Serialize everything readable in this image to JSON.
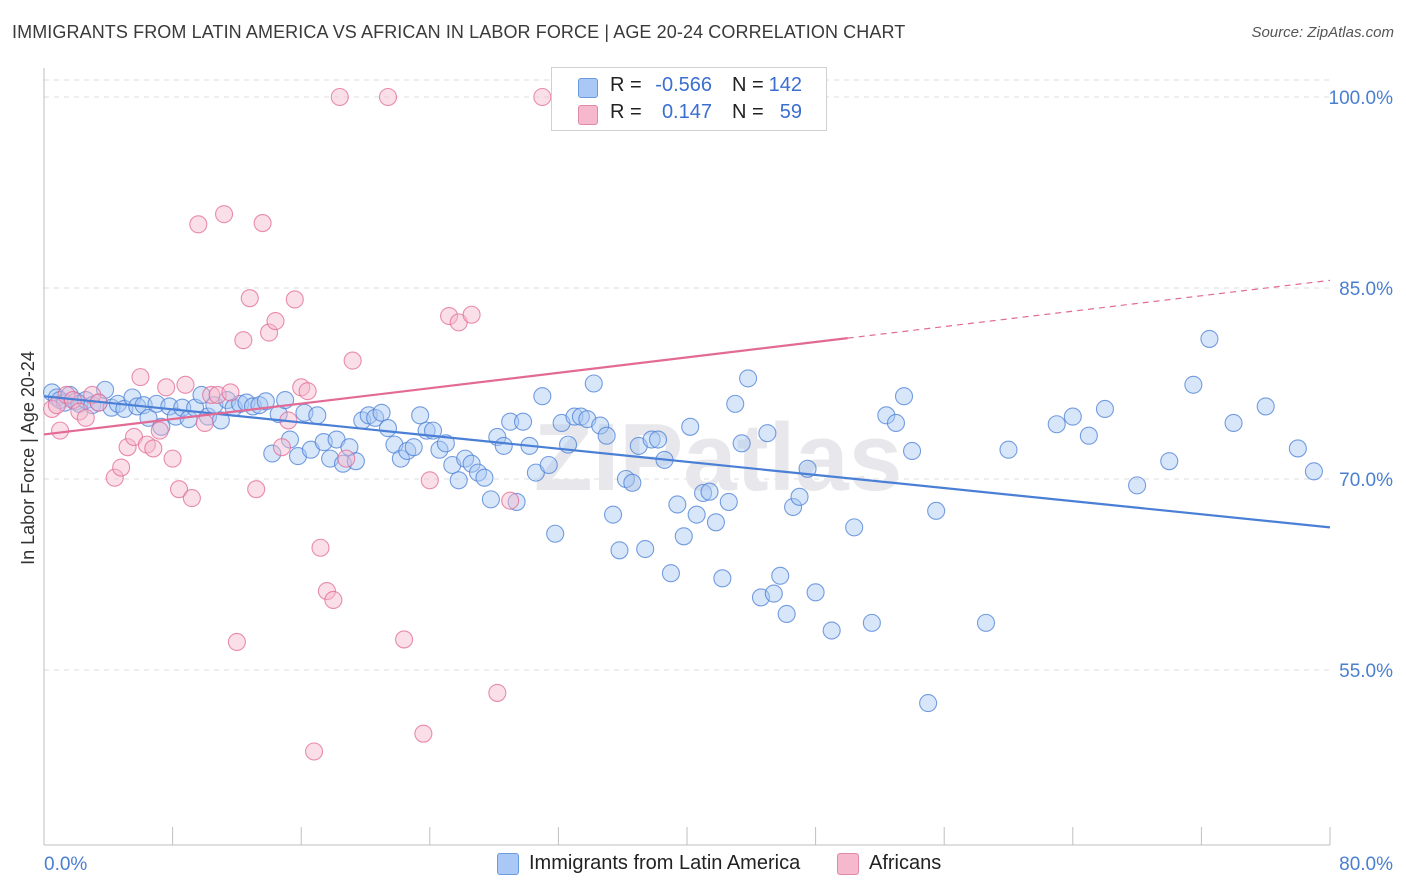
{
  "title": "IMMIGRANTS FROM LATIN AMERICA VS AFRICAN IN LABOR FORCE | AGE 20-24 CORRELATION CHART",
  "source": "Source: ZipAtlas.com",
  "watermark": "ZIPatlas",
  "legend": {
    "rows": [
      {
        "r_label": "R =",
        "r_value": "-0.566",
        "n_label": "N =",
        "n_value": "142",
        "color": "#a9c8f5"
      },
      {
        "r_label": "R =",
        "r_value": "0.147",
        "n_label": "N =",
        "n_value": "59",
        "color": "#f5b8cc"
      }
    ]
  },
  "bottom_legend": [
    {
      "label": "Immigrants from Latin America",
      "color": "#a9c8f5"
    },
    {
      "label": "Africans",
      "color": "#f5b8cc"
    }
  ],
  "chart_data": {
    "type": "scatter",
    "title": "IMMIGRANTS FROM LATIN AMERICA VS AFRICAN IN LABOR FORCE | AGE 20-24 CORRELATION CHART",
    "xlabel": "",
    "ylabel": "In Labor Force | Age 20-24",
    "xlim": [
      0,
      80
    ],
    "ylim": [
      40,
      102
    ],
    "x_tick_labels": [
      "0.0%",
      "80.0%"
    ],
    "y_ticks": [
      55,
      70,
      85,
      100
    ],
    "y_tick_labels": [
      "55.0%",
      "70.0%",
      "85.0%",
      "100.0%"
    ],
    "grid": true,
    "series": [
      {
        "name": "Immigrants from Latin America",
        "color": "#4a7fd6",
        "fill": "#a9c8f5",
        "trend": {
          "x": [
            0,
            80
          ],
          "y": [
            76.5,
            66.2
          ],
          "dashed_from": null
        },
        "points": [
          [
            0.5,
            76.8
          ],
          [
            0.8,
            76.4
          ],
          [
            1.0,
            76.2
          ],
          [
            1.3,
            76.0
          ],
          [
            1.6,
            76.6
          ],
          [
            2.0,
            76.1
          ],
          [
            2.2,
            75.9
          ],
          [
            2.6,
            76.2
          ],
          [
            3.0,
            75.8
          ],
          [
            3.4,
            76.0
          ],
          [
            3.8,
            77.0
          ],
          [
            4.2,
            75.6
          ],
          [
            4.6,
            75.9
          ],
          [
            5.0,
            75.5
          ],
          [
            5.5,
            76.4
          ],
          [
            5.8,
            75.7
          ],
          [
            6.2,
            75.8
          ],
          [
            6.5,
            74.8
          ],
          [
            7.0,
            75.9
          ],
          [
            7.3,
            74.1
          ],
          [
            7.8,
            75.7
          ],
          [
            8.2,
            74.9
          ],
          [
            8.6,
            75.6
          ],
          [
            9.0,
            74.7
          ],
          [
            9.4,
            75.6
          ],
          [
            9.8,
            76.6
          ],
          [
            10.2,
            74.9
          ],
          [
            10.6,
            75.8
          ],
          [
            11.0,
            74.6
          ],
          [
            11.4,
            76.2
          ],
          [
            11.8,
            75.6
          ],
          [
            12.2,
            75.9
          ],
          [
            12.6,
            76.0
          ],
          [
            13.0,
            75.7
          ],
          [
            13.4,
            75.8
          ],
          [
            13.8,
            76.1
          ],
          [
            14.2,
            72.0
          ],
          [
            14.6,
            75.1
          ],
          [
            15.0,
            76.2
          ],
          [
            15.3,
            73.1
          ],
          [
            15.8,
            71.8
          ],
          [
            16.2,
            75.2
          ],
          [
            16.6,
            72.3
          ],
          [
            17.0,
            75.0
          ],
          [
            17.4,
            72.9
          ],
          [
            17.8,
            71.6
          ],
          [
            18.2,
            73.1
          ],
          [
            18.6,
            71.2
          ],
          [
            19.0,
            72.5
          ],
          [
            19.4,
            71.4
          ],
          [
            19.8,
            74.6
          ],
          [
            20.2,
            75.0
          ],
          [
            20.6,
            74.8
          ],
          [
            21.0,
            75.2
          ],
          [
            21.4,
            74.0
          ],
          [
            21.8,
            72.7
          ],
          [
            22.2,
            71.6
          ],
          [
            22.6,
            72.2
          ],
          [
            23.0,
            72.5
          ],
          [
            23.4,
            75.0
          ],
          [
            23.8,
            73.8
          ],
          [
            24.2,
            73.8
          ],
          [
            24.6,
            72.3
          ],
          [
            25.0,
            72.8
          ],
          [
            25.4,
            71.1
          ],
          [
            25.8,
            69.9
          ],
          [
            26.2,
            71.6
          ],
          [
            26.6,
            71.2
          ],
          [
            27.0,
            70.5
          ],
          [
            27.4,
            70.1
          ],
          [
            27.8,
            68.4
          ],
          [
            28.2,
            73.3
          ],
          [
            28.6,
            72.6
          ],
          [
            29.0,
            74.5
          ],
          [
            29.4,
            68.2
          ],
          [
            29.8,
            74.5
          ],
          [
            30.2,
            72.6
          ],
          [
            30.6,
            70.5
          ],
          [
            31.0,
            76.5
          ],
          [
            31.4,
            71.1
          ],
          [
            31.8,
            65.7
          ],
          [
            32.2,
            74.4
          ],
          [
            32.6,
            72.7
          ],
          [
            33.0,
            74.9
          ],
          [
            33.4,
            74.9
          ],
          [
            33.8,
            74.7
          ],
          [
            34.2,
            77.5
          ],
          [
            34.6,
            74.2
          ],
          [
            35.0,
            73.4
          ],
          [
            35.4,
            67.2
          ],
          [
            35.8,
            64.4
          ],
          [
            36.2,
            70.0
          ],
          [
            36.6,
            69.7
          ],
          [
            37.0,
            72.6
          ],
          [
            37.4,
            64.5
          ],
          [
            37.8,
            73.1
          ],
          [
            38.2,
            73.1
          ],
          [
            38.6,
            71.5
          ],
          [
            39.0,
            62.6
          ],
          [
            39.4,
            68.0
          ],
          [
            39.8,
            65.5
          ],
          [
            40.2,
            74.1
          ],
          [
            40.6,
            67.2
          ],
          [
            41.0,
            68.9
          ],
          [
            41.4,
            69.0
          ],
          [
            41.8,
            66.6
          ],
          [
            42.2,
            62.2
          ],
          [
            42.6,
            68.2
          ],
          [
            43.0,
            75.9
          ],
          [
            43.4,
            72.8
          ],
          [
            43.8,
            77.9
          ],
          [
            44.6,
            60.7
          ],
          [
            45.0,
            73.6
          ],
          [
            45.4,
            61.0
          ],
          [
            45.8,
            62.4
          ],
          [
            46.2,
            59.4
          ],
          [
            46.6,
            67.8
          ],
          [
            47.0,
            68.6
          ],
          [
            47.5,
            70.8
          ],
          [
            48.0,
            61.1
          ],
          [
            49.0,
            58.1
          ],
          [
            50.4,
            66.2
          ],
          [
            51.5,
            58.7
          ],
          [
            52.4,
            75.0
          ],
          [
            53.0,
            74.4
          ],
          [
            53.5,
            76.5
          ],
          [
            54.0,
            72.2
          ],
          [
            55.0,
            52.4
          ],
          [
            55.5,
            67.5
          ],
          [
            58.6,
            58.7
          ],
          [
            60.0,
            72.3
          ],
          [
            63.0,
            74.3
          ],
          [
            64.0,
            74.9
          ],
          [
            65.0,
            73.4
          ],
          [
            66.0,
            75.5
          ],
          [
            68.0,
            69.5
          ],
          [
            70.0,
            71.4
          ],
          [
            71.5,
            77.4
          ],
          [
            72.5,
            81.0
          ],
          [
            74.0,
            74.4
          ],
          [
            76.0,
            75.7
          ],
          [
            78.0,
            72.4
          ],
          [
            79.0,
            70.6
          ]
        ]
      },
      {
        "name": "Africans",
        "color": "#e26a95",
        "fill": "#f5b8cc",
        "trend": {
          "x": [
            0,
            80
          ],
          "y": [
            73.5,
            85.6
          ],
          "solid_until": 50
        },
        "points": [
          [
            0.5,
            75.5
          ],
          [
            0.8,
            75.8
          ],
          [
            1.0,
            73.8
          ],
          [
            1.4,
            76.6
          ],
          [
            1.8,
            76.2
          ],
          [
            2.2,
            75.3
          ],
          [
            2.6,
            74.8
          ],
          [
            3.0,
            76.6
          ],
          [
            3.4,
            76.0
          ],
          [
            4.4,
            70.1
          ],
          [
            4.8,
            70.9
          ],
          [
            5.2,
            72.5
          ],
          [
            5.6,
            73.3
          ],
          [
            6.0,
            78.0
          ],
          [
            6.4,
            72.7
          ],
          [
            6.8,
            72.4
          ],
          [
            7.2,
            73.8
          ],
          [
            7.6,
            77.2
          ],
          [
            8.0,
            71.6
          ],
          [
            8.4,
            69.2
          ],
          [
            8.8,
            77.4
          ],
          [
            9.2,
            68.5
          ],
          [
            9.6,
            90.0
          ],
          [
            10.0,
            74.4
          ],
          [
            10.4,
            76.6
          ],
          [
            10.8,
            76.6
          ],
          [
            11.2,
            90.8
          ],
          [
            11.6,
            76.8
          ],
          [
            12.0,
            57.2
          ],
          [
            12.4,
            80.9
          ],
          [
            12.8,
            84.2
          ],
          [
            13.2,
            69.2
          ],
          [
            13.6,
            90.1
          ],
          [
            14.0,
            81.5
          ],
          [
            14.4,
            82.4
          ],
          [
            14.8,
            72.5
          ],
          [
            15.2,
            74.6
          ],
          [
            15.6,
            84.1
          ],
          [
            16.0,
            77.2
          ],
          [
            16.4,
            76.9
          ],
          [
            16.8,
            48.6
          ],
          [
            17.2,
            64.6
          ],
          [
            17.6,
            61.2
          ],
          [
            18.0,
            60.5
          ],
          [
            18.4,
            100.0
          ],
          [
            18.8,
            71.6
          ],
          [
            19.2,
            79.3
          ],
          [
            21.4,
            100.0
          ],
          [
            22.4,
            57.4
          ],
          [
            23.6,
            50.0
          ],
          [
            24.0,
            69.9
          ],
          [
            25.2,
            82.8
          ],
          [
            25.8,
            82.3
          ],
          [
            26.6,
            82.9
          ],
          [
            28.2,
            53.2
          ],
          [
            29.0,
            68.3
          ],
          [
            31.0,
            100.0
          ]
        ]
      }
    ]
  }
}
